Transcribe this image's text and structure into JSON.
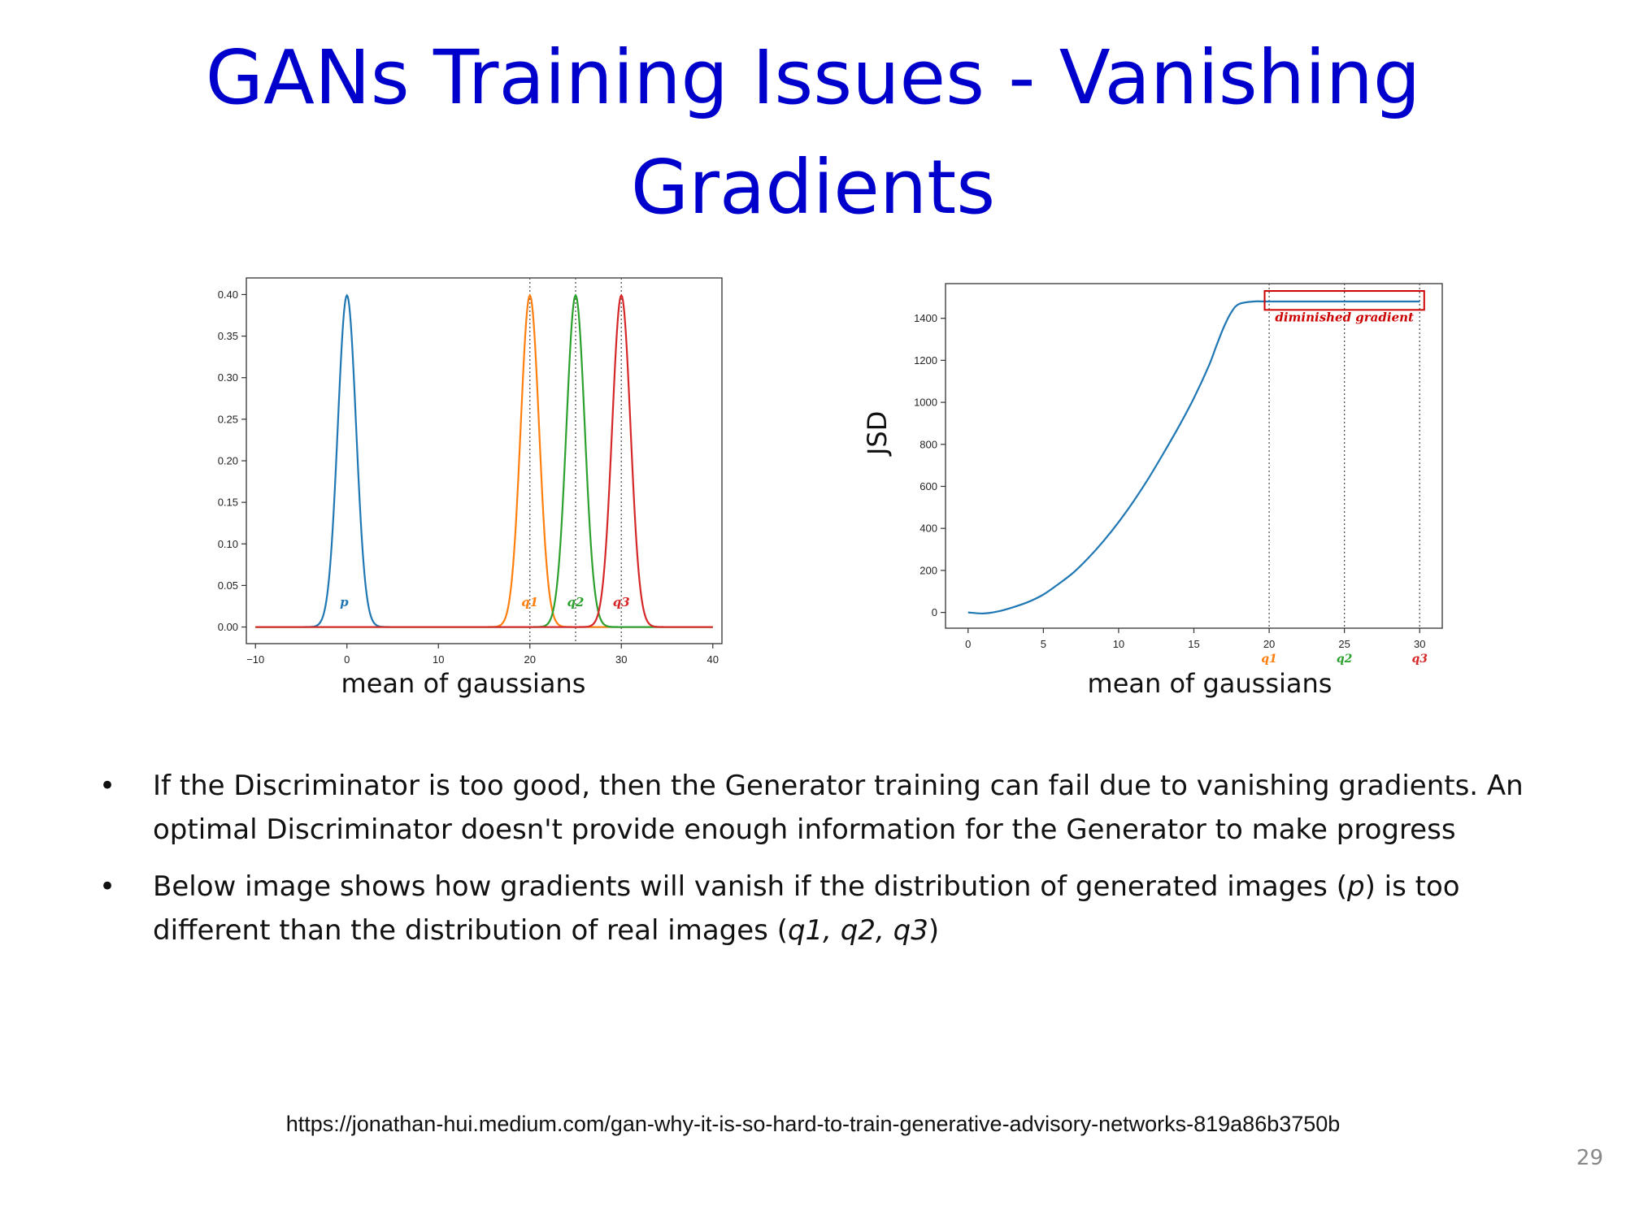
{
  "slide": {
    "title_lines": [
      "GANs Training Issues - Vanishing",
      "Gradients"
    ],
    "bullets": [
      {
        "parts": [
          {
            "text": "If the Discriminator is too good, then the Generator training can fail due to vanishing gradients. An optimal Discriminator doesn't provide enough information for the Generator to make progress",
            "italic": false
          }
        ]
      },
      {
        "parts": [
          {
            "text": "Below image shows how gradients will vanish if the distribution of generated images (",
            "italic": false
          },
          {
            "text": "p",
            "italic": true
          },
          {
            "text": ") is too different than the distribution of real images (",
            "italic": false
          },
          {
            "text": "q1, q2, q3",
            "italic": true
          },
          {
            "text": ")",
            "italic": false
          }
        ]
      }
    ],
    "source_url": "https://jonathan-hui.medium.com/gan-why-it-is-so-hard-to-train-generative-advisory-networks-819a86b3750b",
    "page_number": "29",
    "bullet_glyph": "•"
  },
  "chart_data": [
    {
      "type": "line",
      "title": "",
      "xlabel": "mean of gaussians",
      "ylabel": "",
      "xlim": [
        -11,
        41
      ],
      "ylim": [
        -0.02,
        0.42
      ],
      "xticks": [
        -10,
        0,
        10,
        20,
        30,
        40
      ],
      "xtick_labels": [
        "−10",
        "0",
        "10",
        "20",
        "30",
        "40"
      ],
      "yticks": [
        0.0,
        0.05,
        0.1,
        0.15,
        0.2,
        0.25,
        0.3,
        0.35,
        0.4
      ],
      "ytick_labels": [
        "0.00",
        "0.05",
        "0.10",
        "0.15",
        "0.20",
        "0.25",
        "0.30",
        "0.35",
        "0.40"
      ],
      "grid": false,
      "x_range": [
        -10,
        40
      ],
      "series": [
        {
          "name": "p",
          "mean": 0,
          "std": 1,
          "color": "#1f77b4",
          "label_x": -0.3,
          "label_y": 0.025
        },
        {
          "name": "q1",
          "mean": 20,
          "std": 1,
          "color": "#ff7f0e",
          "label_x": 20,
          "label_y": 0.025
        },
        {
          "name": "q2",
          "mean": 25,
          "std": 1,
          "color": "#2ca02c",
          "label_x": 25,
          "label_y": 0.025
        },
        {
          "name": "q3",
          "mean": 30,
          "std": 1,
          "color": "#d62728",
          "label_x": 30,
          "label_y": 0.025
        }
      ],
      "vlines": [
        20,
        25,
        30
      ]
    },
    {
      "type": "line",
      "title": "",
      "xlabel": "mean of gaussians",
      "ylabel": "JSD",
      "xlim": [
        -1.5,
        31.5
      ],
      "ylim": [
        -75,
        1565
      ],
      "xticks": [
        0,
        5,
        10,
        15,
        20,
        25,
        30
      ],
      "xtick_labels": [
        "0",
        "5",
        "10",
        "15",
        "20",
        "25",
        "30"
      ],
      "yticks": [
        0,
        200,
        400,
        600,
        800,
        1000,
        1200,
        1400
      ],
      "ytick_labels": [
        "0",
        "200",
        "400",
        "600",
        "800",
        "1000",
        "1200",
        "1400"
      ],
      "grid": false,
      "series": [
        {
          "name": "",
          "color": "#1f77b4",
          "x": [
            0,
            1,
            2,
            3,
            4,
            5,
            6,
            7,
            8,
            9,
            10,
            11,
            12,
            13,
            14,
            15,
            16,
            16.5,
            17,
            17.5,
            18,
            19,
            20,
            25,
            30
          ],
          "y": [
            0,
            -5,
            5,
            25,
            50,
            85,
            135,
            190,
            260,
            340,
            430,
            530,
            640,
            760,
            885,
            1020,
            1175,
            1270,
            1360,
            1430,
            1468,
            1480,
            1480,
            1480,
            1480
          ]
        }
      ],
      "vlines": [
        20,
        25,
        30
      ],
      "xtick_sublabels": [
        {
          "x": 20,
          "text": "q1",
          "color": "#ff7f0e"
        },
        {
          "x": 25,
          "text": "q2",
          "color": "#2ca02c"
        },
        {
          "x": 30,
          "text": "q3",
          "color": "#d62728"
        }
      ],
      "annotation": {
        "text": "diminished gradient",
        "color": "#cc0000",
        "x_from": 19.7,
        "x_to": 30.3,
        "y_from": 1440,
        "y_to": 1530
      }
    }
  ]
}
